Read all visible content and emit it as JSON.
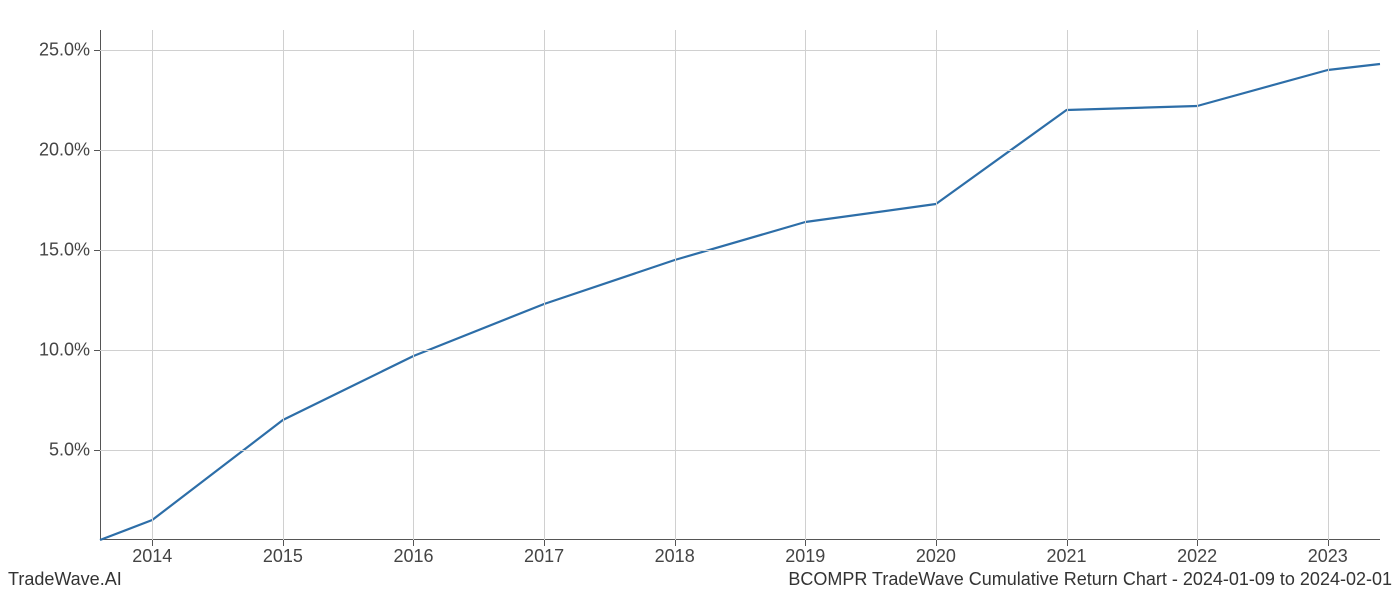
{
  "chart": {
    "type": "line",
    "background_color": "#ffffff",
    "grid_color": "#d0d0d0",
    "axis_color": "#555555",
    "line_color": "#2d6ea8",
    "line_width": 2.2,
    "tick_fontsize": 18,
    "tick_color": "#444444",
    "footer_fontsize": 18,
    "footer_color": "#333333",
    "footer_left": "TradeWave.AI",
    "footer_right": "BCOMPR TradeWave Cumulative Return Chart - 2024-01-09 to 2024-02-01",
    "xlim": [
      2013.6,
      2023.4
    ],
    "ylim": [
      0.5,
      26.0
    ],
    "x_ticks": [
      2014,
      2015,
      2016,
      2017,
      2018,
      2019,
      2020,
      2021,
      2022,
      2023
    ],
    "x_tick_labels": [
      "2014",
      "2015",
      "2016",
      "2017",
      "2018",
      "2019",
      "2020",
      "2021",
      "2022",
      "2023"
    ],
    "y_ticks": [
      5.0,
      10.0,
      15.0,
      20.0,
      25.0
    ],
    "y_tick_labels": [
      "5.0%",
      "10.0%",
      "15.0%",
      "20.0%",
      "25.0%"
    ],
    "series": {
      "x": [
        2013.6,
        2014,
        2015,
        2016,
        2017,
        2018,
        2019,
        2020,
        2021,
        2022,
        2023,
        2023.4
      ],
      "y": [
        0.5,
        1.5,
        6.5,
        9.7,
        12.3,
        14.5,
        16.4,
        17.3,
        22.0,
        22.2,
        24.0,
        24.3
      ]
    }
  }
}
